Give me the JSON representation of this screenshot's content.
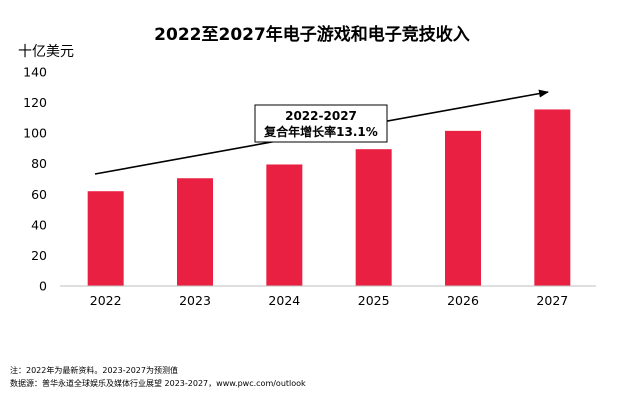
{
  "chart_data": {
    "type": "bar",
    "title": "2022至2027年电子游戏和电子竞技收入",
    "ylabel": "十亿美元",
    "xlabel": "",
    "categories": [
      "2022",
      "2023",
      "2024",
      "2025",
      "2026",
      "2027"
    ],
    "values": [
      62,
      70.5,
      79.5,
      89.5,
      101.5,
      115.5
    ],
    "ylim": [
      0,
      140
    ],
    "yticks": [
      0,
      20,
      40,
      60,
      80,
      100,
      120,
      140
    ],
    "grid": false,
    "bar_color": "#ea2043",
    "annotation": {
      "line1": "2022-2027",
      "line2": "复合年增长率13.1%"
    }
  },
  "footnotes": {
    "note": "注：2022年为最新资料。2023-2027为预测值",
    "source": "数据源：普华永道全球娱乐及媒体行业展望 2023-2027，www.pwc.com/outlook"
  }
}
